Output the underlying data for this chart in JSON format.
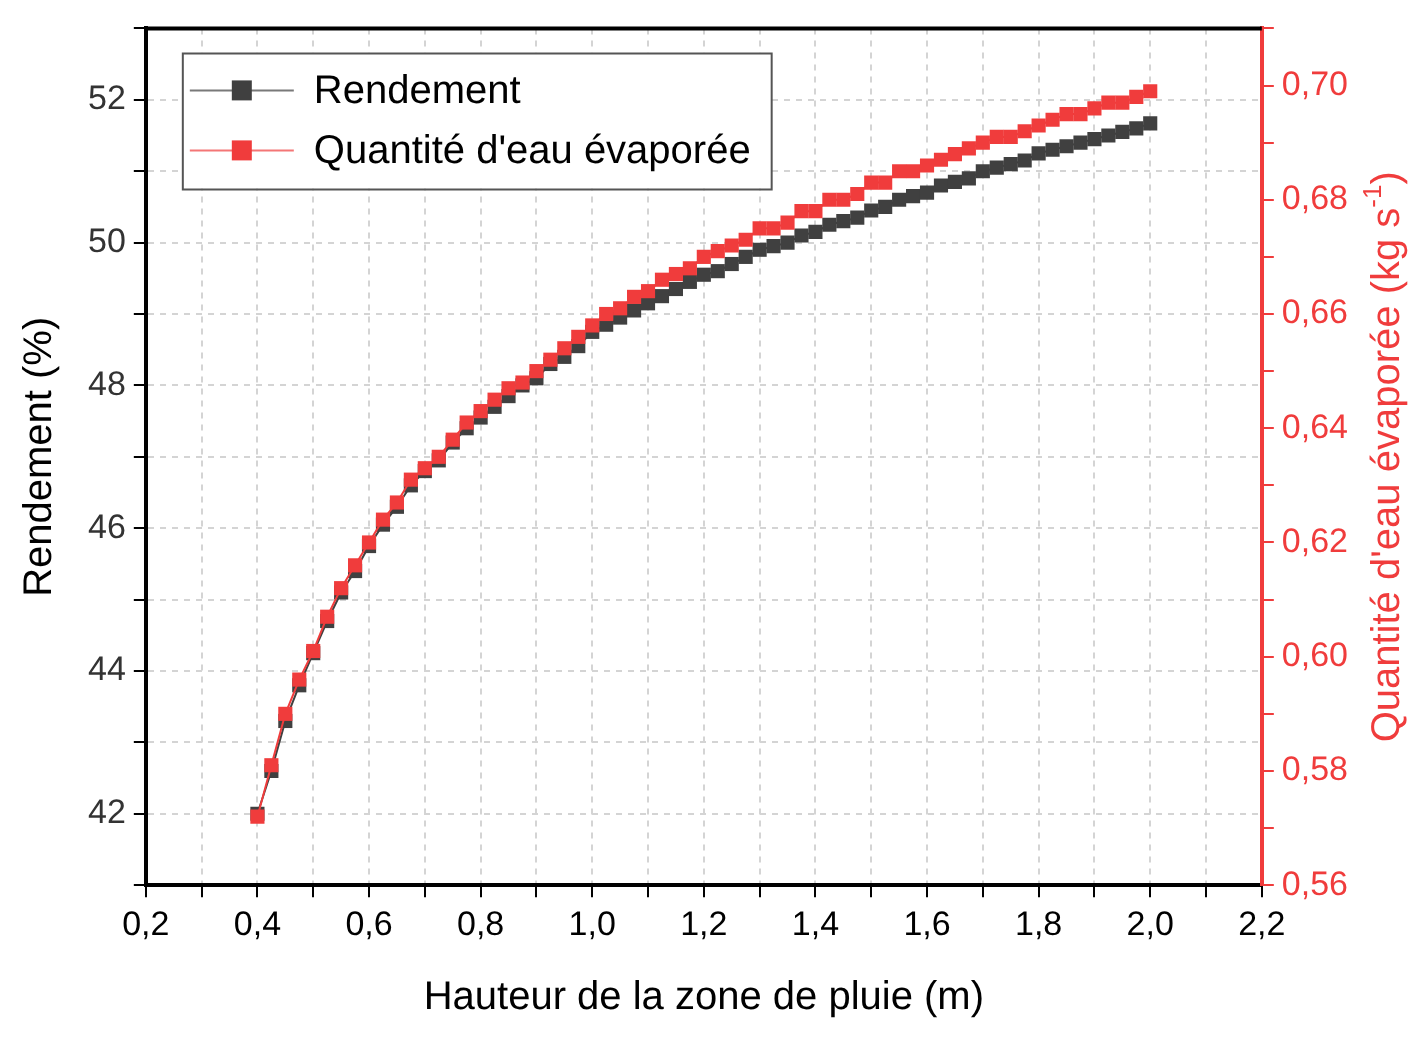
{
  "chart_data": {
    "type": "line",
    "xlabel": "Hauteur de la zone de pluie (m)",
    "ylabel": "Rendement (%)",
    "y2label": "Quantité d'eau évaporée (kg s$^{-1}$)",
    "x": [
      0.4,
      0.425,
      0.45,
      0.475,
      0.5,
      0.525,
      0.55,
      0.575,
      0.6,
      0.625,
      0.65,
      0.675,
      0.7,
      0.725,
      0.75,
      0.775,
      0.8,
      0.825,
      0.85,
      0.875,
      0.9,
      0.925,
      0.95,
      0.975,
      1.0,
      1.025,
      1.05,
      1.075,
      1.1,
      1.125,
      1.15,
      1.175,
      1.2,
      1.225,
      1.25,
      1.275,
      1.3,
      1.325,
      1.35,
      1.375,
      1.4,
      1.425,
      1.45,
      1.475,
      1.5,
      1.525,
      1.55,
      1.575,
      1.6,
      1.625,
      1.65,
      1.675,
      1.7,
      1.725,
      1.75,
      1.775,
      1.8,
      1.825,
      1.85,
      1.875,
      1.9,
      1.925,
      1.95,
      1.975,
      2.0
    ],
    "series": [
      {
        "name": "Rendement",
        "color": "#404040",
        "values": [
          42.0,
          42.6,
          43.3,
          43.8,
          44.25,
          44.7,
          45.1,
          45.4,
          45.75,
          46.05,
          46.3,
          46.6,
          46.8,
          46.95,
          47.2,
          47.4,
          47.55,
          47.7,
          47.85,
          48.0,
          48.1,
          48.3,
          48.4,
          48.55,
          48.75,
          48.85,
          48.95,
          49.05,
          49.15,
          49.25,
          49.35,
          49.45,
          49.55,
          49.6,
          49.7,
          49.8,
          49.9,
          49.95,
          50.0,
          50.1,
          50.15,
          50.25,
          50.3,
          50.35,
          50.45,
          50.5,
          50.6,
          50.65,
          50.7,
          50.8,
          50.85,
          50.9,
          51.0,
          51.05,
          51.1,
          51.15,
          51.25,
          51.3,
          51.35,
          51.4,
          51.45,
          51.5,
          51.55,
          51.6,
          51.67
        ]
      },
      {
        "name": "Quantité d'eau évaporée",
        "color": "#f03c3c",
        "axis": "y2",
        "values": [
          0.572,
          0.581,
          0.59,
          0.596,
          0.601,
          0.607,
          0.612,
          0.616,
          0.62,
          0.624,
          0.627,
          0.631,
          0.633,
          0.635,
          0.638,
          0.641,
          0.643,
          0.645,
          0.647,
          0.648,
          0.65,
          0.652,
          0.654,
          0.656,
          0.658,
          0.66,
          0.661,
          0.663,
          0.664,
          0.666,
          0.667,
          0.668,
          0.67,
          0.671,
          0.672,
          0.673,
          0.675,
          0.675,
          0.676,
          0.678,
          0.678,
          0.68,
          0.68,
          0.681,
          0.683,
          0.683,
          0.685,
          0.685,
          0.686,
          0.687,
          0.688,
          0.689,
          0.69,
          0.691,
          0.691,
          0.692,
          0.693,
          0.694,
          0.695,
          0.695,
          0.696,
          0.697,
          0.697,
          0.698,
          0.699
        ]
      }
    ],
    "xlim": [
      0.2,
      2.2
    ],
    "xticks": [
      {
        "value": 0.2,
        "label": "0,2"
      },
      {
        "value": 0.3,
        "label": null
      },
      {
        "value": 0.4,
        "label": "0,4"
      },
      {
        "value": 0.5,
        "label": null
      },
      {
        "value": 0.6,
        "label": "0,6"
      },
      {
        "value": 0.7,
        "label": null
      },
      {
        "value": 0.8,
        "label": "0,8"
      },
      {
        "value": 0.9,
        "label": null
      },
      {
        "value": 1.0,
        "label": "1,0"
      },
      {
        "value": 1.1,
        "label": null
      },
      {
        "value": 1.2,
        "label": "1,2"
      },
      {
        "value": 1.3,
        "label": null
      },
      {
        "value": 1.4,
        "label": "1,4"
      },
      {
        "value": 1.5,
        "label": null
      },
      {
        "value": 1.6,
        "label": "1,6"
      },
      {
        "value": 1.7,
        "label": null
      },
      {
        "value": 1.8,
        "label": "1,8"
      },
      {
        "value": 1.9,
        "label": null
      },
      {
        "value": 2.0,
        "label": "2,0"
      },
      {
        "value": 2.1,
        "label": null
      },
      {
        "value": 2.2,
        "label": "2,2"
      }
    ],
    "ylim": [
      41,
      53
    ],
    "yticks": [
      {
        "value": 41,
        "label": null
      },
      42,
      {
        "value": 43,
        "label": null
      },
      44,
      {
        "value": 45,
        "label": null
      },
      46,
      {
        "value": 47,
        "label": null
      },
      48,
      {
        "value": 49,
        "label": null
      },
      50,
      {
        "value": 51,
        "label": null
      },
      52,
      {
        "value": 53,
        "label": null
      }
    ],
    "y2lim": [
      0.56,
      0.71
    ],
    "y2ticks": [
      {
        "value": 0.56,
        "label": "0,56"
      },
      {
        "value": 0.57,
        "label": null
      },
      {
        "value": 0.58,
        "label": "0,58"
      },
      {
        "value": 0.59,
        "label": null
      },
      {
        "value": 0.6,
        "label": "0,60"
      },
      {
        "value": 0.61,
        "label": null
      },
      {
        "value": 0.62,
        "label": "0,62"
      },
      {
        "value": 0.63,
        "label": null
      },
      {
        "value": 0.64,
        "label": "0,64"
      },
      {
        "value": 0.65,
        "label": null
      },
      {
        "value": 0.66,
        "label": "0,66"
      },
      {
        "value": 0.67,
        "label": null
      },
      {
        "value": 0.68,
        "label": "0,68"
      },
      {
        "value": 0.69,
        "label": null
      },
      {
        "value": 0.7,
        "label": "0,70"
      },
      {
        "value": 0.71,
        "label": null
      }
    ],
    "grid": true,
    "legend": "top left",
    "marker": "square",
    "line_style": "solid"
  }
}
